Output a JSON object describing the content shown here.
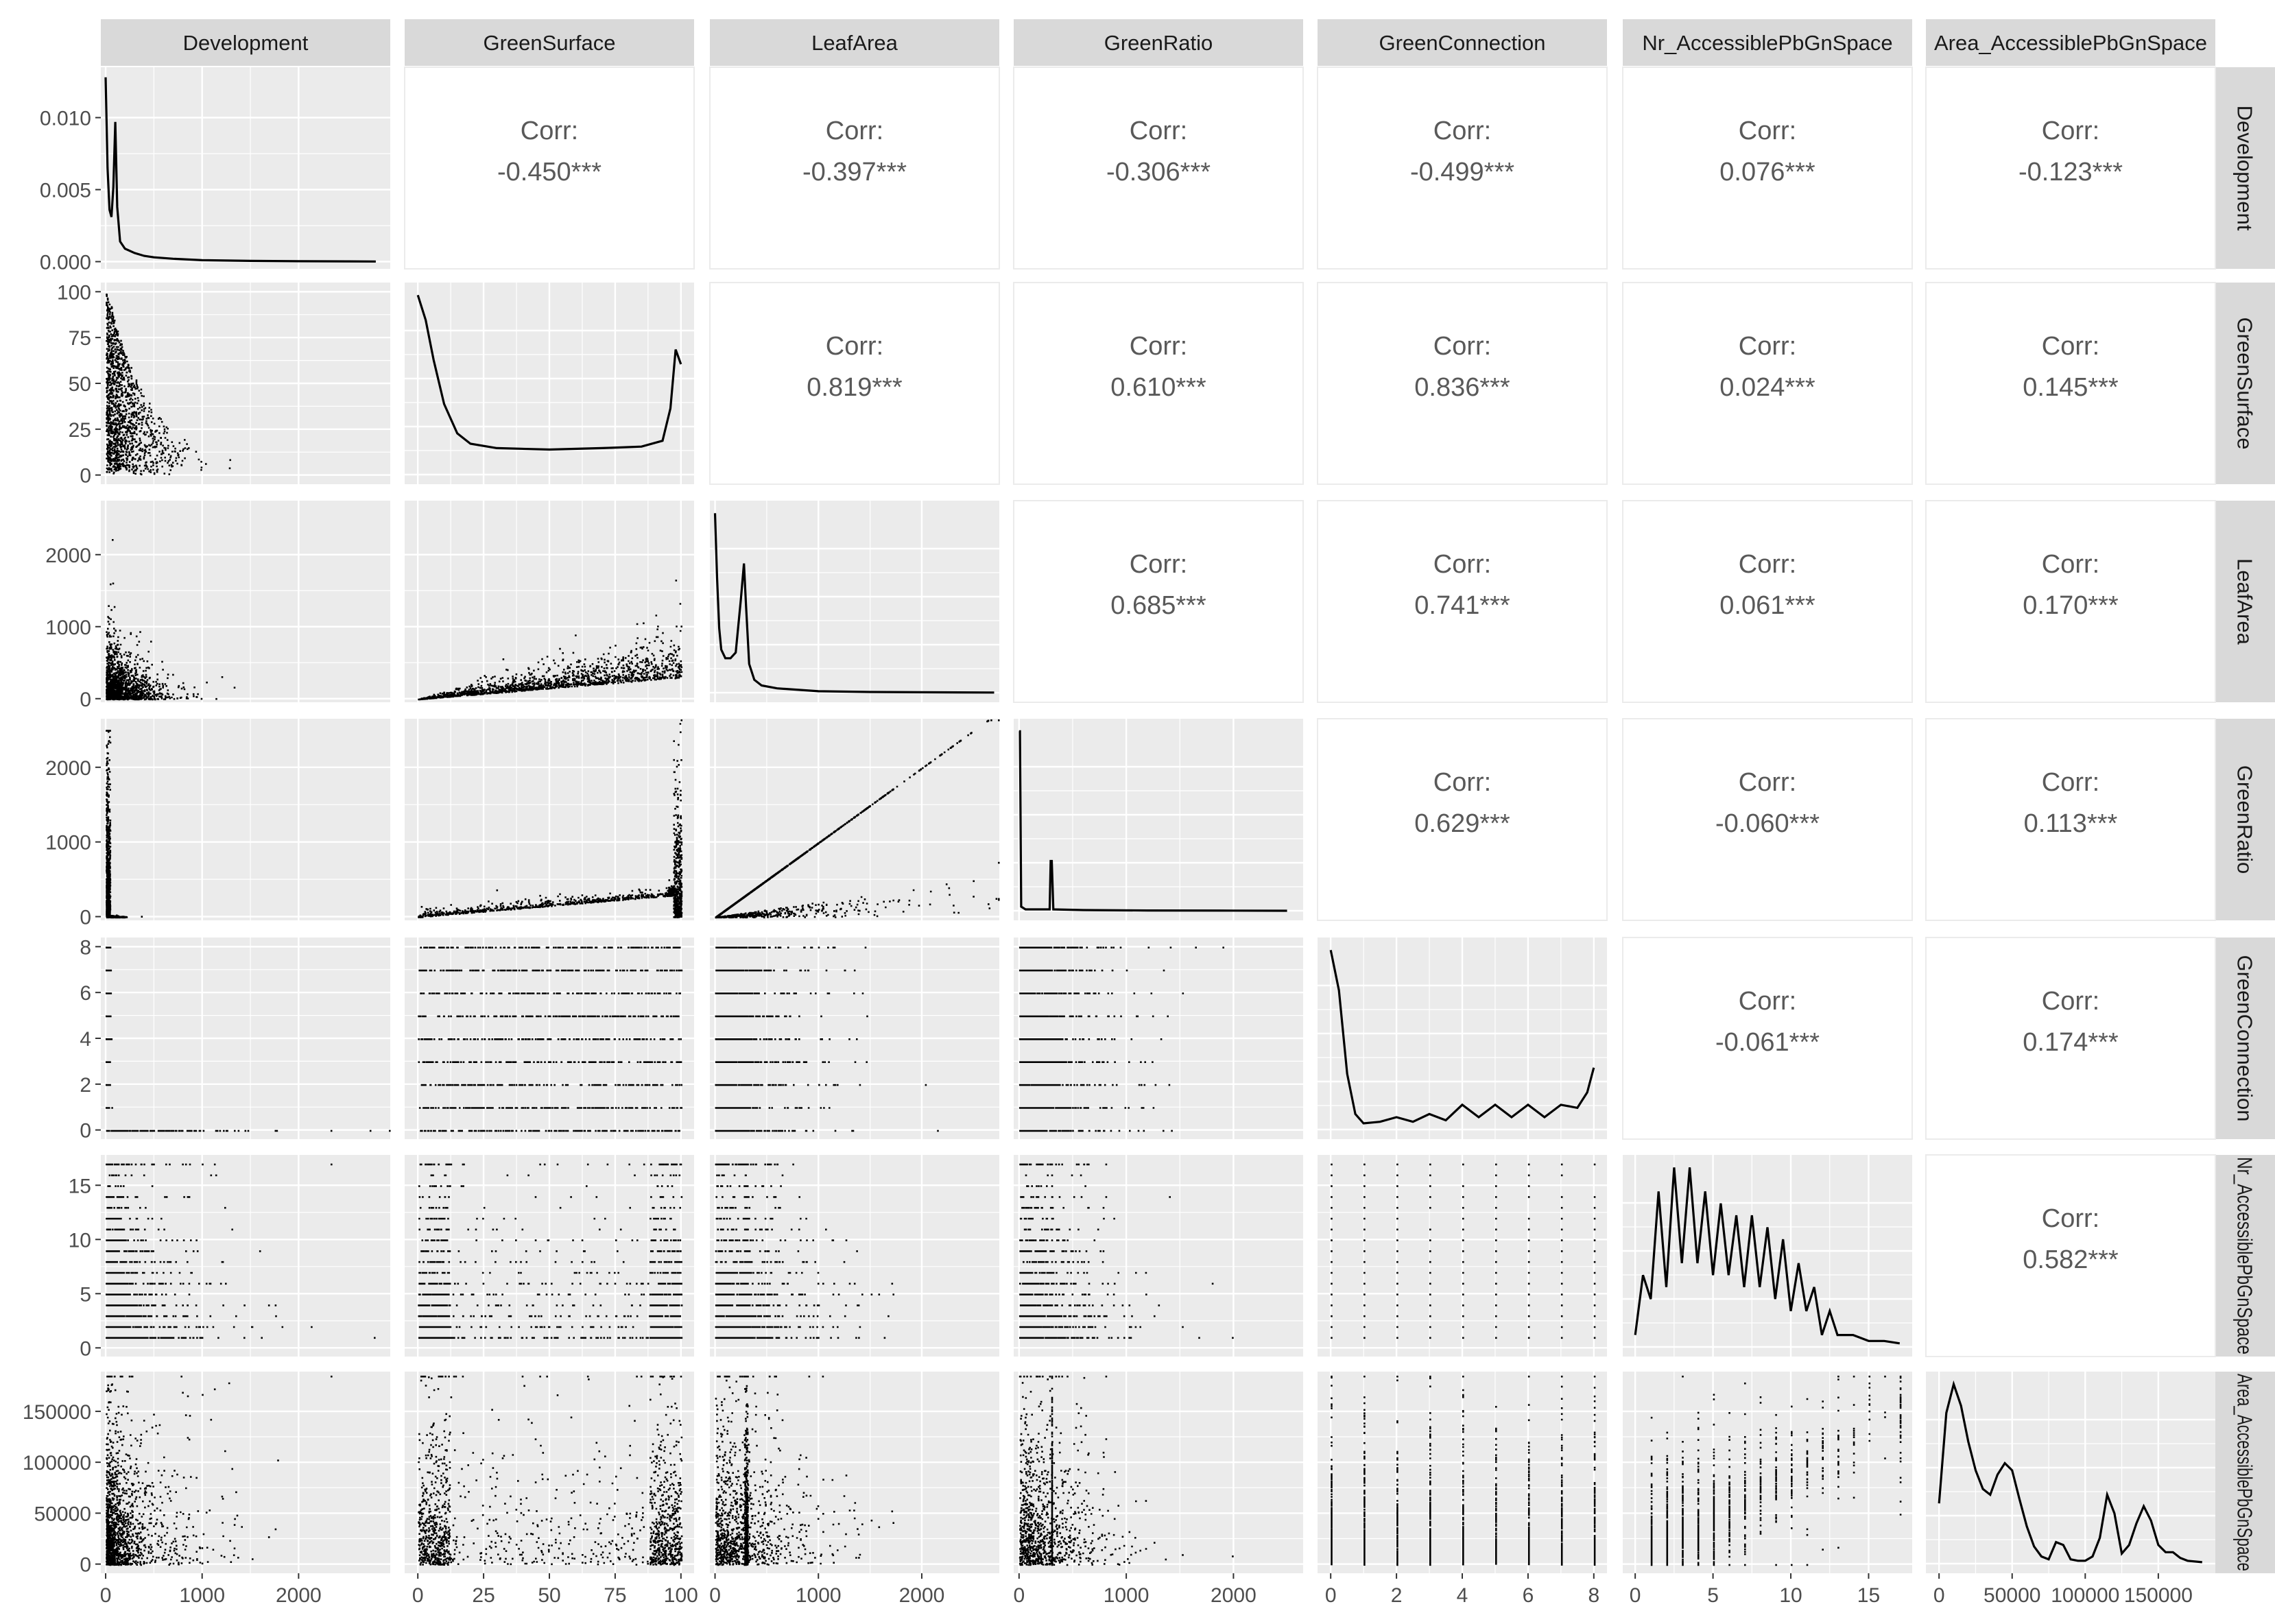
{
  "variables": [
    "Development",
    "GreenSurface",
    "LeafArea",
    "GreenRatio",
    "GreenConnection",
    "Nr_AccessiblePbGnSpace",
    "Area_AccessiblePbGnSpace"
  ],
  "column_headers": [
    "Development",
    "GreenSurface",
    "LeafArea",
    "GreenRatio",
    "GreenConnection",
    "Nr_AccessiblePbGnSpace",
    "Area_AccessiblePbGnSpace"
  ],
  "row_headers": [
    "Development",
    "GreenSurface",
    "LeafArea",
    "GreenRatio",
    "GreenConnection",
    "Nr_AccessiblePbGnSpace",
    "Area_AccessiblePbGnSpace"
  ],
  "corr_label": "Corr:",
  "colors": {
    "panel_bg": "#ebebeb",
    "grid": "#ffffff",
    "strip_bg": "#d9d9d9",
    "points": "#000000",
    "corr_text": "#595959",
    "tick_text": "#4d4d4d"
  },
  "chart_data": {
    "type": "scatter",
    "title": "",
    "layout": "pairs-plot matrix: scatter below diagonal, density on diagonal, correlation above diagonal",
    "correlations": [
      {
        "row": "Development",
        "col": "GreenSurface",
        "text": "-0.450***",
        "value": -0.45
      },
      {
        "row": "Development",
        "col": "LeafArea",
        "text": "-0.397***",
        "value": -0.397
      },
      {
        "row": "Development",
        "col": "GreenRatio",
        "text": "-0.306***",
        "value": -0.306
      },
      {
        "row": "Development",
        "col": "GreenConnection",
        "text": "-0.499***",
        "value": -0.499
      },
      {
        "row": "Development",
        "col": "Nr_AccessiblePbGnSpace",
        "text": "0.076***",
        "value": 0.076
      },
      {
        "row": "Development",
        "col": "Area_AccessiblePbGnSpace",
        "text": "-0.123***",
        "value": -0.123
      },
      {
        "row": "GreenSurface",
        "col": "LeafArea",
        "text": "0.819***",
        "value": 0.819
      },
      {
        "row": "GreenSurface",
        "col": "GreenRatio",
        "text": "0.610***",
        "value": 0.61
      },
      {
        "row": "GreenSurface",
        "col": "GreenConnection",
        "text": "0.836***",
        "value": 0.836
      },
      {
        "row": "GreenSurface",
        "col": "Nr_AccessiblePbGnSpace",
        "text": "0.024***",
        "value": 0.024
      },
      {
        "row": "GreenSurface",
        "col": "Area_AccessiblePbGnSpace",
        "text": "0.145***",
        "value": 0.145
      },
      {
        "row": "LeafArea",
        "col": "GreenRatio",
        "text": "0.685***",
        "value": 0.685
      },
      {
        "row": "LeafArea",
        "col": "GreenConnection",
        "text": "0.741***",
        "value": 0.741
      },
      {
        "row": "LeafArea",
        "col": "Nr_AccessiblePbGnSpace",
        "text": "0.061***",
        "value": 0.061
      },
      {
        "row": "LeafArea",
        "col": "Area_AccessiblePbGnSpace",
        "text": "0.170***",
        "value": 0.17
      },
      {
        "row": "GreenRatio",
        "col": "GreenConnection",
        "text": "0.629***",
        "value": 0.629
      },
      {
        "row": "GreenRatio",
        "col": "Nr_AccessiblePbGnSpace",
        "text": "-0.060***",
        "value": -0.06
      },
      {
        "row": "GreenRatio",
        "col": "Area_AccessiblePbGnSpace",
        "text": "0.113***",
        "value": 0.113
      },
      {
        "row": "GreenConnection",
        "col": "Nr_AccessiblePbGnSpace",
        "text": "-0.061***",
        "value": -0.061
      },
      {
        "row": "GreenConnection",
        "col": "Area_AccessiblePbGnSpace",
        "text": "0.174***",
        "value": 0.174
      },
      {
        "row": "Nr_AccessiblePbGnSpace",
        "col": "Area_AccessiblePbGnSpace",
        "text": "0.582***",
        "value": 0.582
      }
    ],
    "axes": {
      "Development": {
        "range": [
          -50,
          2950
        ],
        "ticks": [
          0,
          1000,
          2000
        ],
        "tick_labels": [
          "0",
          "1000",
          "2000"
        ]
      },
      "GreenSurface": {
        "range": [
          -5,
          105
        ],
        "ticks": [
          0,
          25,
          50,
          75,
          100
        ],
        "tick_labels": [
          "0",
          "25",
          "50",
          "75",
          "100"
        ]
      },
      "LeafArea": {
        "range": [
          -50,
          2750
        ],
        "ticks": [
          0,
          1000,
          2000
        ],
        "tick_labels": [
          "0",
          "1000",
          "2000"
        ]
      },
      "GreenRatio": {
        "range": [
          -50,
          2650
        ],
        "ticks": [
          0,
          1000,
          2000
        ],
        "tick_labels": [
          "0",
          "1000",
          "2000"
        ]
      },
      "GreenConnection": {
        "range": [
          -0.4,
          8.4
        ],
        "ticks": [
          0,
          2,
          4,
          6,
          8
        ],
        "tick_labels": [
          "0",
          "2",
          "4",
          "6",
          "8"
        ]
      },
      "Nr_AccessiblePbGnSpace": {
        "range": [
          -0.8,
          17.8
        ],
        "ticks": [
          0,
          5,
          10,
          15
        ],
        "tick_labels": [
          "0",
          "5",
          "10",
          "15"
        ]
      },
      "Area_AccessiblePbGnSpace": {
        "range": [
          -9000,
          189000
        ],
        "ticks": [
          0,
          50000,
          100000,
          150000
        ],
        "tick_labels": [
          "0",
          "50000",
          "100000",
          "150000"
        ]
      }
    },
    "development_density_axis": {
      "range": [
        -0.0005,
        0.0135
      ],
      "ticks": [
        0,
        0.005,
        0.01
      ],
      "tick_labels": [
        "0.000",
        "0.005",
        "0.010"
      ]
    },
    "diagonal_densities": {
      "Development": {
        "x": [
          0,
          20,
          40,
          60,
          80,
          100,
          120,
          150,
          200,
          300,
          400,
          500,
          700,
          1000,
          1500,
          2000,
          2500,
          2800
        ],
        "y": [
          0.0128,
          0.0065,
          0.0036,
          0.0031,
          0.0052,
          0.0097,
          0.0038,
          0.0014,
          0.0009,
          0.0006,
          0.0004,
          0.0003,
          0.0002,
          0.0001,
          5e-05,
          3e-05,
          2e-05,
          1e-05
        ]
      },
      "GreenSurface": {
        "x": [
          0,
          3,
          6,
          10,
          15,
          20,
          30,
          50,
          70,
          85,
          93,
          96,
          98,
          100
        ],
        "y": [
          0.0122,
          0.0105,
          0.0078,
          0.0048,
          0.0028,
          0.0021,
          0.0018,
          0.0017,
          0.0018,
          0.0019,
          0.0023,
          0.0045,
          0.0085,
          0.0075
        ]
      },
      "LeafArea": {
        "x": [
          0,
          20,
          40,
          60,
          100,
          150,
          200,
          250,
          280,
          300,
          330,
          380,
          450,
          600,
          1000,
          1500,
          2000,
          2700
        ],
        "y": [
          0.0125,
          0.008,
          0.0045,
          0.003,
          0.0024,
          0.0024,
          0.0028,
          0.0065,
          0.009,
          0.006,
          0.002,
          0.0009,
          0.0005,
          0.0003,
          0.0001,
          5e-05,
          3e-05,
          1e-05
        ]
      },
      "GreenRatio": {
        "x": [
          0,
          8,
          20,
          60,
          200,
          285,
          295,
          305,
          320,
          600,
          1200,
          2000,
          2500
        ],
        "y": [
          0.013,
          0.013,
          0.0003,
          0.0001,
          0.0001,
          0.0001,
          0.0036,
          0.0036,
          0.0001,
          5e-05,
          2e-05,
          1e-05,
          0.0
        ]
      },
      "GreenConnection": {
        "x": [
          0,
          0.25,
          0.5,
          0.75,
          1.0,
          1.5,
          2.0,
          2.5,
          3.0,
          3.5,
          4.0,
          4.5,
          5.0,
          5.5,
          6.0,
          6.5,
          7.0,
          7.5,
          7.8,
          8.0
        ],
        "y": [
          0.58,
          0.45,
          0.18,
          0.05,
          0.02,
          0.025,
          0.04,
          0.025,
          0.05,
          0.03,
          0.08,
          0.04,
          0.08,
          0.04,
          0.08,
          0.04,
          0.08,
          0.07,
          0.12,
          0.2
        ]
      },
      "Nr_AccessiblePbGnSpace": {
        "x": [
          0,
          0.5,
          1,
          1.5,
          2,
          2.5,
          3,
          3.5,
          4,
          4.5,
          5,
          5.5,
          6,
          6.5,
          7,
          7.5,
          8,
          8.5,
          9,
          9.5,
          10,
          10.5,
          11,
          11.5,
          12,
          12.5,
          13,
          14,
          15,
          16,
          17
        ],
        "y": [
          0.01,
          0.06,
          0.04,
          0.13,
          0.05,
          0.15,
          0.07,
          0.15,
          0.07,
          0.13,
          0.06,
          0.12,
          0.06,
          0.11,
          0.05,
          0.11,
          0.05,
          0.1,
          0.04,
          0.09,
          0.03,
          0.07,
          0.03,
          0.05,
          0.01,
          0.03,
          0.01,
          0.01,
          0.005,
          0.005,
          0.003
        ]
      },
      "Area_AccessiblePbGnSpace": {
        "x": [
          0,
          5000,
          10000,
          15000,
          20000,
          25000,
          30000,
          35000,
          40000,
          45000,
          50000,
          55000,
          60000,
          65000,
          70000,
          75000,
          80000,
          85000,
          90000,
          95000,
          100000,
          105000,
          110000,
          115000,
          120000,
          125000,
          130000,
          135000,
          140000,
          145000,
          150000,
          155000,
          160000,
          165000,
          170000,
          180000
        ],
        "y": [
          4.2,
          10.5,
          12.5,
          11.0,
          8.5,
          6.5,
          5.2,
          4.8,
          6.2,
          7.0,
          6.5,
          4.5,
          2.6,
          1.2,
          0.5,
          0.3,
          1.5,
          1.3,
          0.3,
          0.2,
          0.2,
          0.5,
          1.8,
          4.8,
          3.5,
          0.7,
          1.3,
          2.8,
          4.0,
          3.0,
          1.3,
          0.8,
          0.8,
          0.4,
          0.2,
          0.1
        ]
      }
    }
  }
}
